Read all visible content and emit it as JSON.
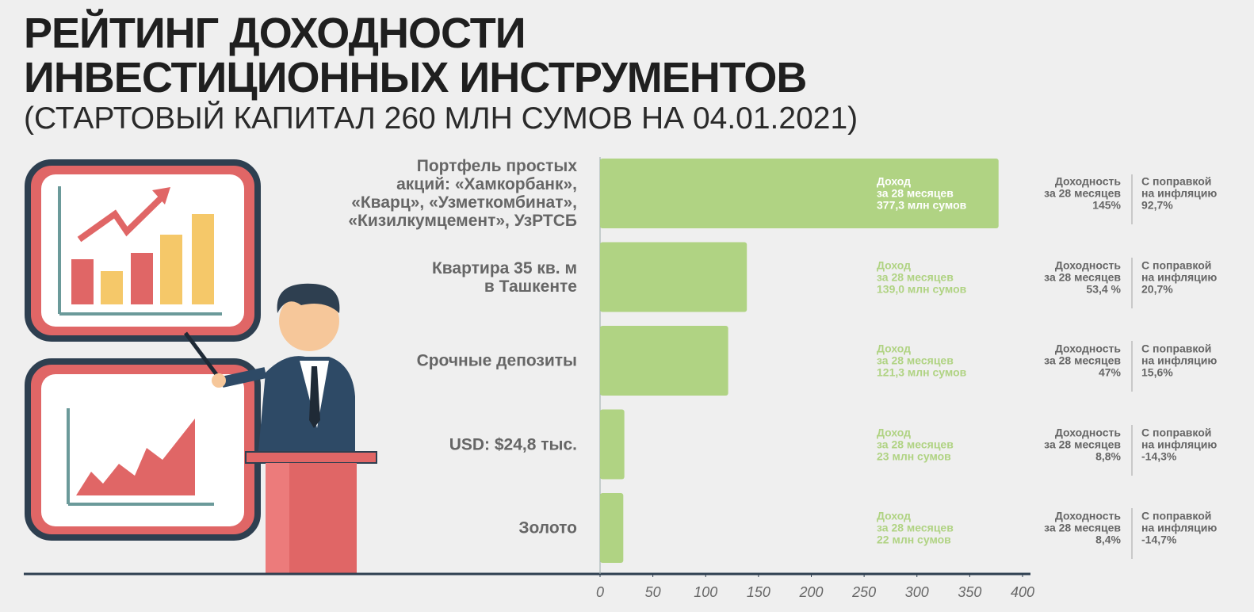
{
  "chart_data": {
    "type": "hbar",
    "title": "РЕЙТИНГ ДОХОДНОСТИ\nИНВЕСТИЦИОННЫХ ИНСТРУМЕНТОВ",
    "subtitle": "(СТАРТОВЫЙ КАПИТАЛ 260 МЛН СУМОВ НА 04.01.2021)",
    "categories": [
      "Портфель простых\nакций: «Хамкорбанк»,\n«Кварц», «Узметкомбинат»,\n«Кизилкумцемент», УзРТСБ",
      "Квартира 35 кв. м\nв Ташкенте",
      "Срочные депозиты",
      "USD: $24,8 тыс.",
      "Золото"
    ],
    "values": [
      377.3,
      139.0,
      121.3,
      23,
      22
    ],
    "value_labels": [
      "377,3 млн сумов",
      "139,0 млн сумов",
      "121,3 млн сумов",
      "23  млн сумов",
      "22 млн сумов"
    ],
    "value_label_heading": "Доход\nза 28 месяцев",
    "color": "#b0d383",
    "return_heading": "Доходность\nза 28 месяцев",
    "returns": [
      "145%",
      "53,4 %",
      "47%",
      "8,8%",
      "8,4%"
    ],
    "inflation_heading": "С поправкой\nна инфляцию",
    "inflation_adjusted": [
      "92,7%",
      "20,7%",
      "15,6%",
      "-14,3%",
      "-14,7%"
    ],
    "xlim": [
      0,
      400
    ],
    "xticks": [
      0,
      50,
      100,
      150,
      200,
      250,
      300,
      350,
      400
    ]
  }
}
